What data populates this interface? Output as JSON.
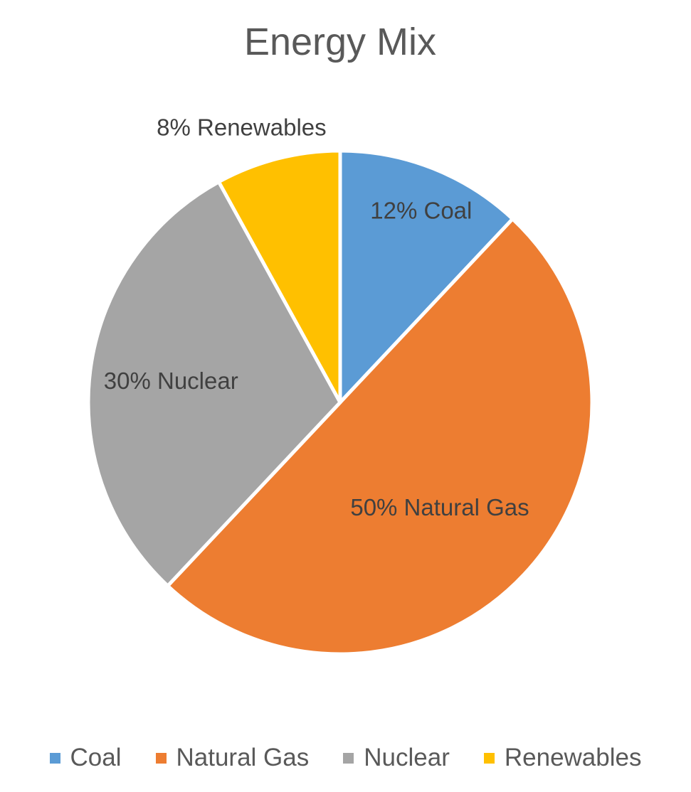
{
  "chart_data": {
    "type": "pie",
    "title": "Energy Mix",
    "categories": [
      "Coal",
      "Natural Gas",
      "Nuclear",
      "Renewables"
    ],
    "values": [
      12,
      50,
      30,
      8
    ],
    "unit": "%",
    "data_labels": [
      "12% Coal",
      "50% Natural Gas",
      "30% Nuclear",
      "8% Renewables"
    ],
    "colors": [
      "#5B9BD5",
      "#ED7D31",
      "#A5A5A5",
      "#FFC000"
    ],
    "start_angle_deg": 0,
    "direction": "clockwise",
    "legend_position": "bottom",
    "grid": false
  }
}
